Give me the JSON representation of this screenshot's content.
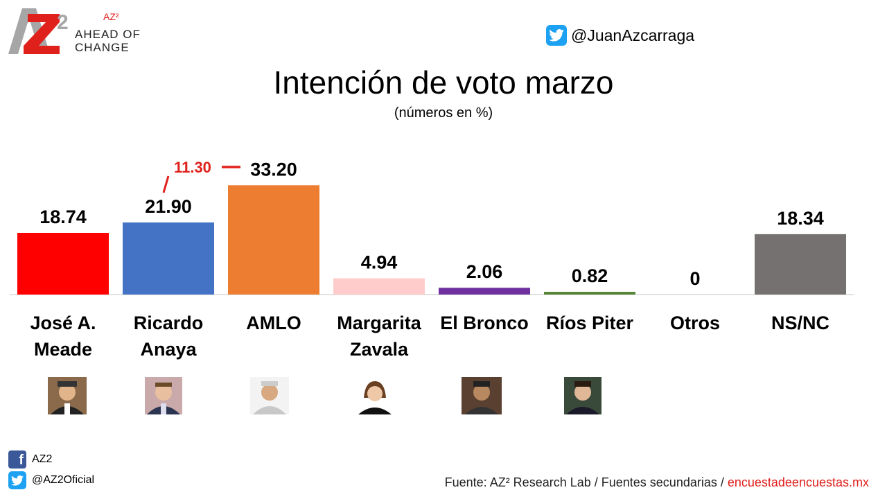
{
  "brand": {
    "az2_label": "AZ²",
    "ahead_line1": "AHEAD OF",
    "ahead_line2": "CHANGE"
  },
  "twitter_handle": "@JuanAzcarraga",
  "chart_data": {
    "type": "bar",
    "title": "Intención de voto marzo",
    "subtitle": "(números en %)",
    "categories": [
      [
        "José A.",
        "Meade"
      ],
      [
        "Ricardo",
        "Anaya"
      ],
      [
        "AMLO"
      ],
      [
        "Margarita",
        "Zavala"
      ],
      [
        "El Bronco"
      ],
      [
        "Ríos Piter"
      ],
      [
        "Otros"
      ],
      [
        "NS/NC"
      ]
    ],
    "values": [
      18.74,
      21.9,
      33.2,
      4.94,
      2.06,
      0.82,
      0,
      18.34
    ],
    "value_labels": [
      "18.74",
      "21.90",
      "33.20",
      "4.94",
      "2.06",
      "0.82",
      "0",
      "18.34"
    ],
    "colors": [
      "#ff0000",
      "#4472c4",
      "#ed7d31",
      "#ffcccc",
      "#7030a0",
      "#548235",
      "#ffffff",
      "#767171"
    ],
    "annotation": {
      "text": "11.30",
      "color": "#e0201b"
    },
    "ylim": [
      0,
      34
    ]
  },
  "social": {
    "facebook": "AZ2",
    "twitter": "@AZ2Oficial"
  },
  "source": {
    "text": "Fuente: AZ² Research Lab / Fuentes secundarias / ",
    "link": "encuestadeencuestas.mx"
  }
}
